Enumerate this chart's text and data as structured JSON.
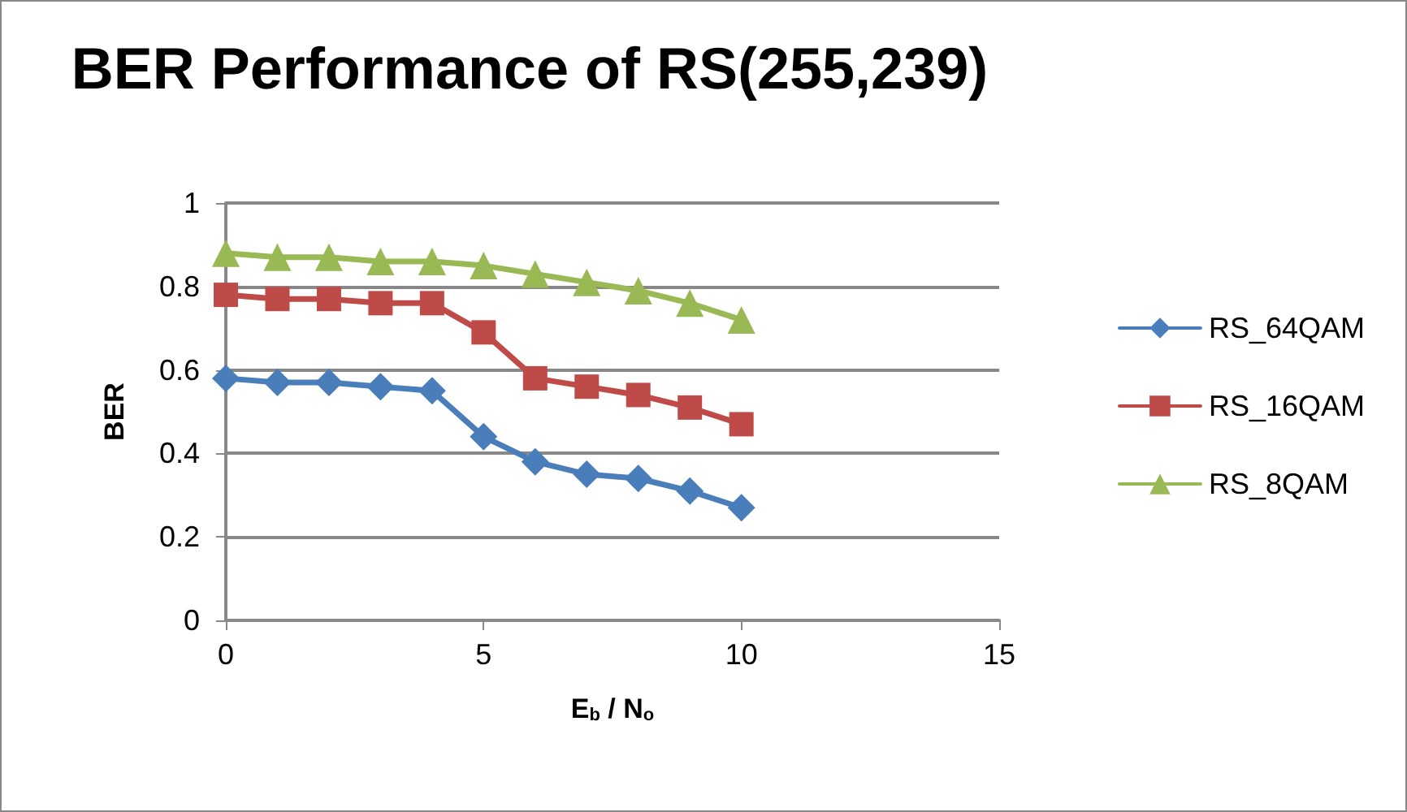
{
  "chart_data": {
    "type": "line",
    "title": "BER Performance of RS(255,239)",
    "xlabel": "E$_{b}$ / N$_{o}$",
    "ylabel": "BER",
    "x": [
      0,
      1,
      2,
      3,
      4,
      5,
      6,
      7,
      8,
      9,
      10
    ],
    "series": [
      {
        "name": "RS_64QAM",
        "color": "#4a7ebb",
        "marker": "diamond",
        "values": [
          0.58,
          0.57,
          0.57,
          0.56,
          0.55,
          0.44,
          0.38,
          0.35,
          0.34,
          0.31,
          0.27
        ]
      },
      {
        "name": "RS_16QAM",
        "color": "#be4b48",
        "marker": "square",
        "values": [
          0.78,
          0.77,
          0.77,
          0.76,
          0.76,
          0.69,
          0.58,
          0.56,
          0.54,
          0.51,
          0.47
        ]
      },
      {
        "name": "RS_8QAM",
        "color": "#98b954",
        "marker": "triangle",
        "values": [
          0.88,
          0.87,
          0.87,
          0.86,
          0.86,
          0.85,
          0.83,
          0.81,
          0.79,
          0.76,
          0.72
        ]
      }
    ],
    "xlim": [
      0,
      15
    ],
    "xticks": [
      0,
      5,
      10,
      15
    ],
    "ylim": [
      0,
      1
    ],
    "yticks": [
      0,
      0.2,
      0.4,
      0.6,
      0.8,
      1
    ],
    "grid": "y",
    "legend": "right",
    "line_style": "solid"
  }
}
